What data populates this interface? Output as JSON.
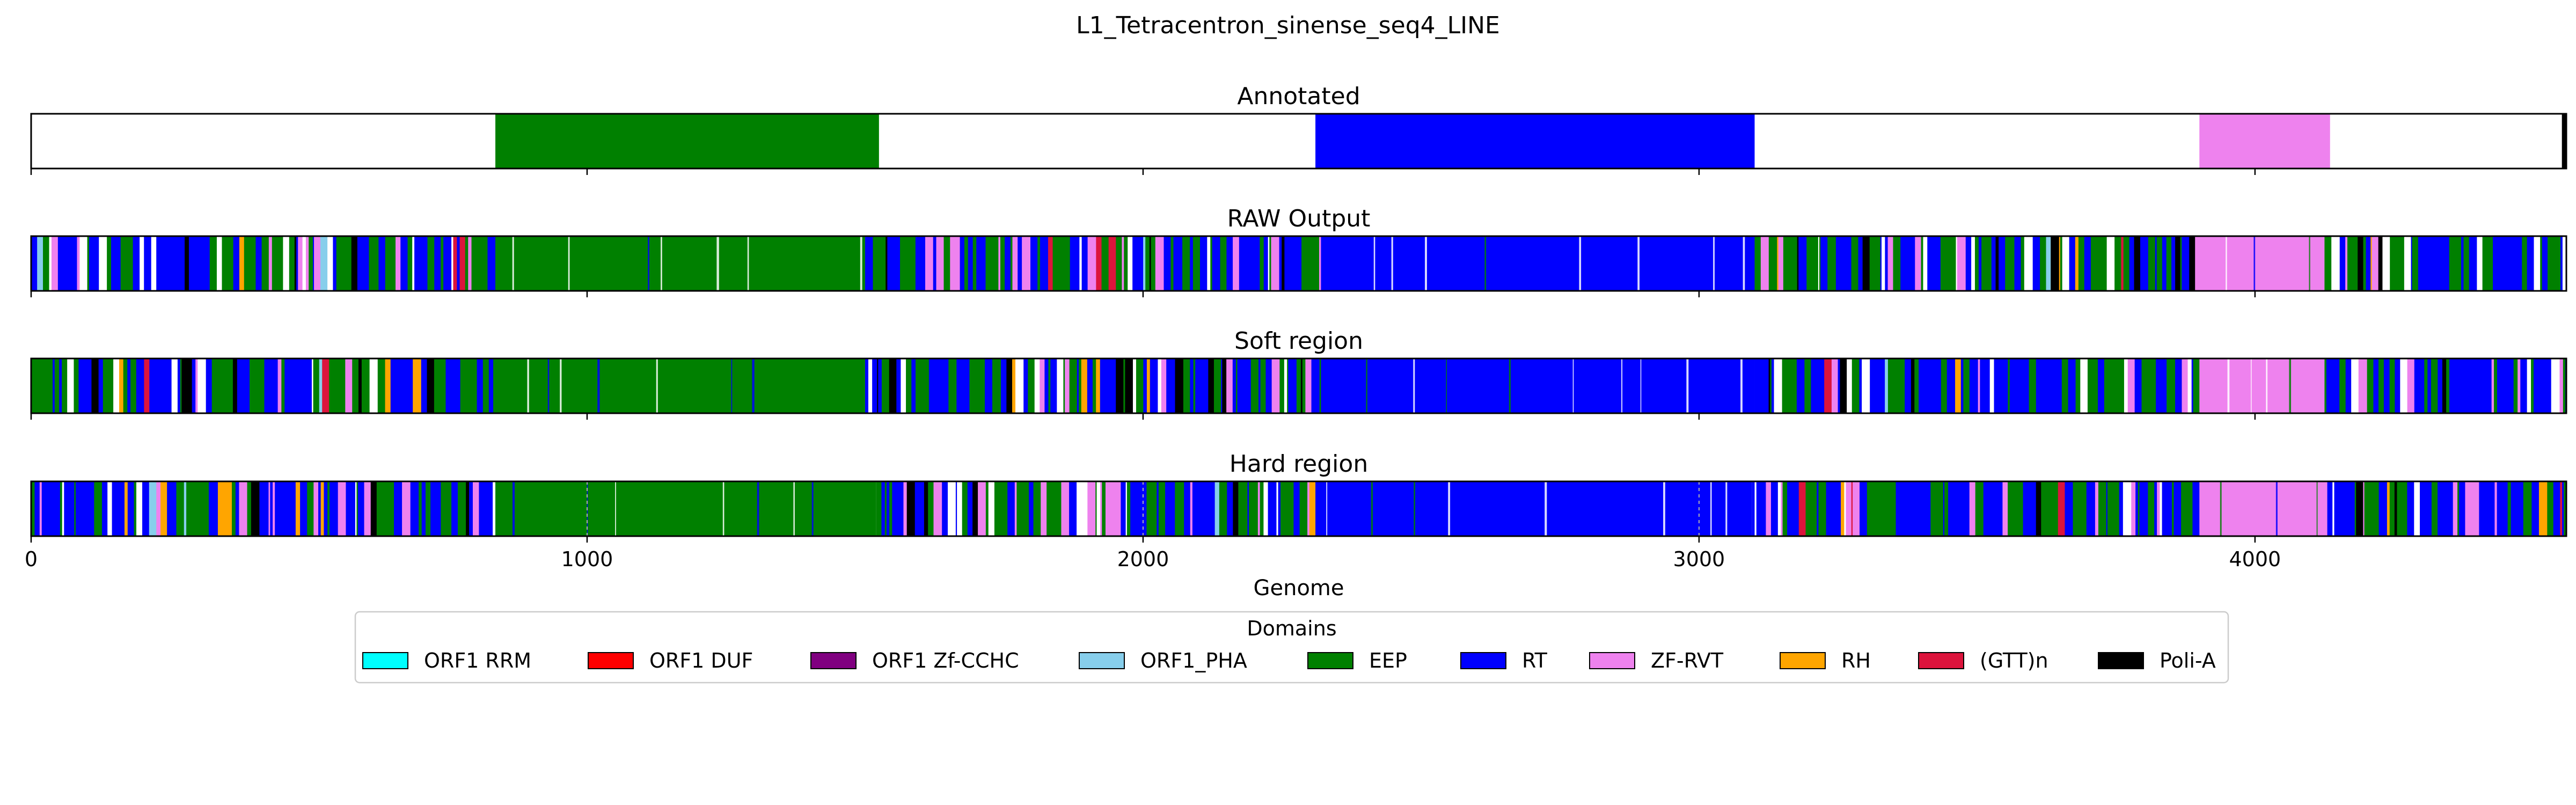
{
  "figure": {
    "suptitle": "L1_Tetracentron_sinense_seq4_LINE"
  },
  "chart_data": {
    "type": "domain-track",
    "xlabel": "Genome",
    "xlim": [
      0,
      4560
    ],
    "xticks": [
      0,
      1000,
      2000,
      3000,
      4000
    ],
    "tracks": [
      {
        "title": "Annotated",
        "segments": [
          {
            "start": 835,
            "end": 1525,
            "domain": "EEP"
          },
          {
            "start": 2310,
            "end": 3100,
            "domain": "RT"
          },
          {
            "start": 3900,
            "end": 4135,
            "domain": "ZF-RVT"
          },
          {
            "start": 4552,
            "end": 4560,
            "domain": "Poli-A"
          }
        ]
      },
      {
        "title": "RAW Output",
        "dense_regions": [
          {
            "start": 0,
            "end": 835,
            "mix": "noise"
          },
          {
            "start": 835,
            "end": 1500,
            "domain": "EEP"
          },
          {
            "start": 1500,
            "end": 2320,
            "mix": "noise"
          },
          {
            "start": 2320,
            "end": 3100,
            "domain": "RT"
          },
          {
            "start": 3100,
            "end": 3900,
            "mix": "noise"
          },
          {
            "start": 3900,
            "end": 4125,
            "domain": "ZF-RVT"
          },
          {
            "start": 4125,
            "end": 4560,
            "mix": "noise"
          }
        ]
      },
      {
        "title": "Soft region",
        "dense_regions": [
          {
            "start": 0,
            "end": 835,
            "mix": "noise"
          },
          {
            "start": 835,
            "end": 1500,
            "domain": "EEP"
          },
          {
            "start": 1500,
            "end": 2320,
            "mix": "noise"
          },
          {
            "start": 2320,
            "end": 3100,
            "domain": "RT"
          },
          {
            "start": 3100,
            "end": 3900,
            "mix": "noise"
          },
          {
            "start": 3900,
            "end": 4125,
            "domain": "ZF-RVT"
          },
          {
            "start": 4125,
            "end": 4560,
            "mix": "noise"
          }
        ]
      },
      {
        "title": "Hard region",
        "dense_regions": [
          {
            "start": 0,
            "end": 160,
            "mix": "noise"
          },
          {
            "start": 160,
            "end": 835,
            "mix": "noise"
          },
          {
            "start": 835,
            "end": 1520,
            "domain": "EEP"
          },
          {
            "start": 1520,
            "end": 2310,
            "mix": "noise"
          },
          {
            "start": 2310,
            "end": 3095,
            "domain": "RT"
          },
          {
            "start": 3095,
            "end": 3900,
            "mix": "noise"
          },
          {
            "start": 3900,
            "end": 4130,
            "domain": "ZF-RVT"
          },
          {
            "start": 4130,
            "end": 4560,
            "mix": "noise"
          }
        ],
        "gridlines": [
          1000,
          2000,
          3000
        ]
      }
    ],
    "legend": {
      "title": "Domains",
      "placement": "bottom-center",
      "entries": [
        {
          "label": "ORF1 RRM",
          "color": "#00ffff"
        },
        {
          "label": "ORF1 DUF",
          "color": "#ff0000"
        },
        {
          "label": "ORF1 Zf-CCHC",
          "color": "#800080"
        },
        {
          "label": "ORF1_PHA",
          "color": "#87ceeb"
        },
        {
          "label": "EEP",
          "color": "#008000"
        },
        {
          "label": "RT",
          "color": "#0000ff"
        },
        {
          "label": "ZF-RVT",
          "color": "#ee82ee"
        },
        {
          "label": "RH",
          "color": "#ffa500"
        },
        {
          "label": "(GTT)n",
          "color": "#dc143c"
        },
        {
          "label": "Poli-A",
          "color": "#000000"
        }
      ]
    }
  }
}
